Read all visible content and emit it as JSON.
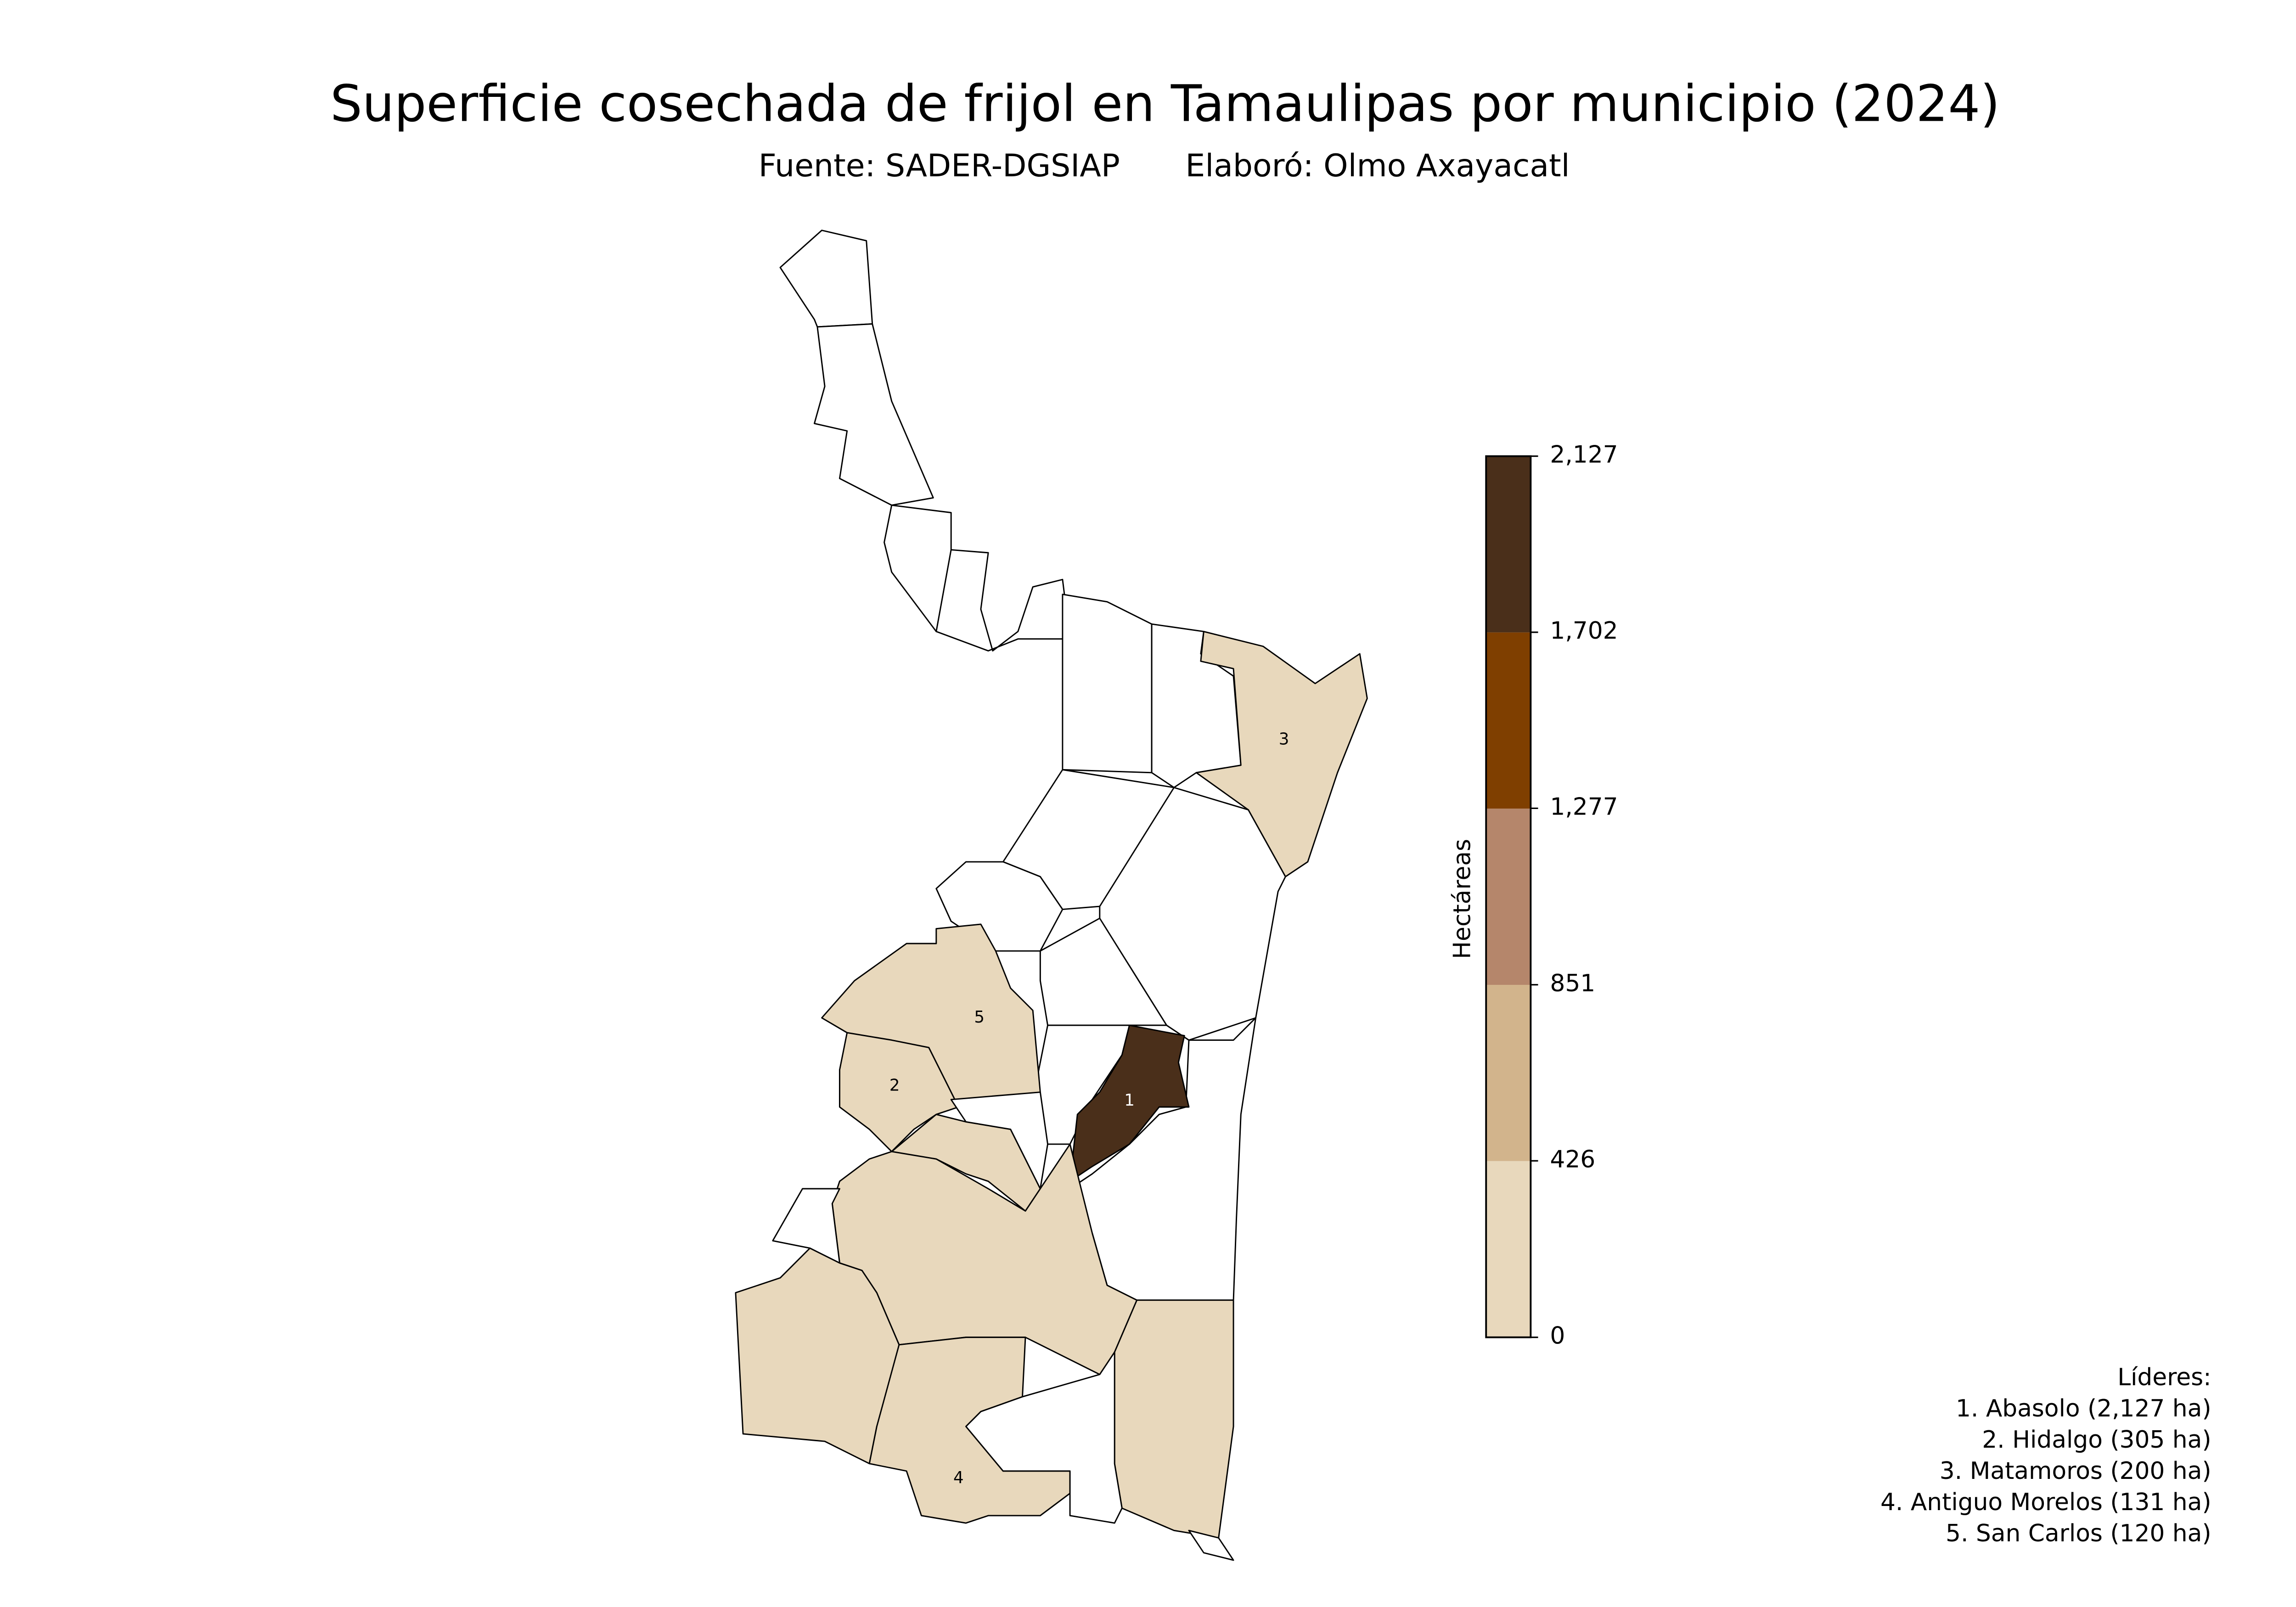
{
  "title": "Superficie cosechada de frijol en Tamaulipas por municipio (2024)",
  "subtitle": [
    "Fuente: SADER-DGSIAP",
    "Elaboró: Olmo Axayacatl"
  ],
  "map_labels": [
    "1",
    "2",
    "3",
    "4",
    "5"
  ],
  "colorbar": {
    "label": "Hectáreas",
    "lim": [
      0,
      2127
    ],
    "ticks": [
      0,
      426,
      851,
      {
        "value": 1277,
        "label": "1,277"
      },
      {
        "value": 1702,
        "label": "1,702"
      },
      {
        "value": 2127,
        "label": "2,127"
      }
    ],
    "colors": [
      "#e8d8bc",
      "#d2b48c",
      "#b5866b",
      "#7f3f00",
      "#4a2f1a"
    ]
  },
  "leaders": {
    "title": "Líderes:",
    "items": [
      "1. Abasolo (2,127 ha)",
      "2. Hidalgo (305 ha)",
      "3. Matamoros (200 ha)",
      "4. Antiguo Morelos (131 ha)",
      "5. San Carlos (120 ha)"
    ]
  }
}
